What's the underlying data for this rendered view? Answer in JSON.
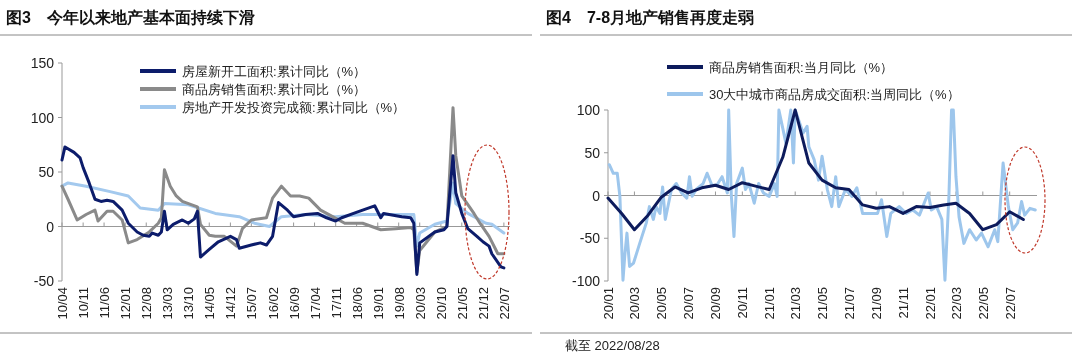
{
  "chart_data": [
    {
      "type": "line",
      "title": "图3　今年以来地产基本面持续下滑",
      "legend": "top",
      "xlim": [
        "2010-04",
        "2022-09"
      ],
      "xticks": [
        {
          "value": "2010-04",
          "label": "10/04"
        },
        {
          "value": "2010-11",
          "label": "10/11"
        },
        {
          "value": "2011-06",
          "label": "11/06"
        },
        {
          "value": "2012-01",
          "label": "12/01"
        },
        {
          "value": "2012-08",
          "label": "12/08"
        },
        {
          "value": "2013-03",
          "label": "13/03"
        },
        {
          "value": "2013-10",
          "label": "13/10"
        },
        {
          "value": "2014-05",
          "label": "14/05"
        },
        {
          "value": "2014-12",
          "label": "14/12"
        },
        {
          "value": "2015-07",
          "label": "15/07"
        },
        {
          "value": "2016-02",
          "label": "16/02"
        },
        {
          "value": "2016-09",
          "label": "16/09"
        },
        {
          "value": "2017-04",
          "label": "17/04"
        },
        {
          "value": "2017-11",
          "label": "17/11"
        },
        {
          "value": "2018-06",
          "label": "18/06"
        },
        {
          "value": "2019-01",
          "label": "19/01"
        },
        {
          "value": "2019-08",
          "label": "19/08"
        },
        {
          "value": "2020-03",
          "label": "20/03"
        },
        {
          "value": "2020-10",
          "label": "20/10"
        },
        {
          "value": "2021-05",
          "label": "21/05"
        },
        {
          "value": "2021-12",
          "label": "21/12"
        },
        {
          "value": "2022-07",
          "label": "22/07"
        }
      ],
      "ylim": [
        -50,
        150
      ],
      "yticks": [
        -50,
        0,
        50,
        100,
        150
      ],
      "series": [
        {
          "name": "房屋新开工面积:累计同比（%）",
          "color": "#0c1c6b",
          "x": [
            "2010-04",
            "2010-05",
            "2010-08",
            "2010-10",
            "2010-11",
            "2011-01",
            "2011-03",
            "2011-05",
            "2011-07",
            "2011-09",
            "2011-12",
            "2012-02",
            "2012-05",
            "2012-07",
            "2012-09",
            "2012-10",
            "2012-12",
            "2013-01",
            "2013-02",
            "2013-03",
            "2013-05",
            "2013-08",
            "2013-10",
            "2013-12",
            "2014-01",
            "2014-02",
            "2014-05",
            "2014-08",
            "2014-12",
            "2015-02",
            "2015-03",
            "2015-07",
            "2015-10",
            "2015-12",
            "2016-02",
            "2016-04",
            "2016-07",
            "2016-09",
            "2017-01",
            "2017-05",
            "2017-08",
            "2017-11",
            "2018-01",
            "2018-05",
            "2018-08",
            "2018-12",
            "2019-02",
            "2019-03",
            "2019-09",
            "2019-12",
            "2020-01",
            "2020-02",
            "2020-03",
            "2020-08",
            "2020-11",
            "2020-12",
            "2021-02",
            "2021-03",
            "2021-05",
            "2021-07",
            "2021-10",
            "2021-12",
            "2022-02",
            "2022-03",
            "2022-06",
            "2022-07"
          ],
          "values": [
            61,
            73,
            68,
            63,
            54,
            40,
            25,
            23,
            24,
            23,
            15,
            3,
            -5,
            -8,
            -9,
            -6,
            -8,
            -5,
            14,
            -3,
            2,
            6,
            3,
            7,
            14,
            -28,
            -21,
            -14,
            -9,
            -12,
            -20,
            -17,
            -15,
            -17,
            -9,
            22,
            15,
            9,
            11,
            12,
            8,
            5,
            8,
            12,
            15,
            19,
            8,
            12,
            9,
            8,
            3,
            -44,
            -15,
            -5,
            -3,
            0,
            65,
            31,
            12,
            -2,
            -9,
            -14,
            -18,
            -25,
            -37,
            -38
          ]
        },
        {
          "name": "商品房销售面积:累计同比（%）",
          "color": "#8a8a8a",
          "x": [
            "2010-04",
            "2010-06",
            "2010-09",
            "2010-12",
            "2011-03",
            "2011-04",
            "2011-07",
            "2011-09",
            "2011-12",
            "2012-02",
            "2012-05",
            "2012-09",
            "2012-12",
            "2013-01",
            "2013-02",
            "2013-04",
            "2013-06",
            "2013-08",
            "2014-01",
            "2014-02",
            "2014-05",
            "2014-07",
            "2014-10",
            "2015-02",
            "2015-04",
            "2015-07",
            "2015-12",
            "2016-02",
            "2016-05",
            "2016-08",
            "2016-11",
            "2017-02",
            "2017-06",
            "2017-10",
            "2018-02",
            "2018-08",
            "2019-02",
            "2019-07",
            "2019-12",
            "2020-01",
            "2020-02",
            "2020-03",
            "2020-08",
            "2020-12",
            "2021-02",
            "2021-03",
            "2021-05",
            "2021-09",
            "2021-11",
            "2022-02",
            "2022-05",
            "2022-07"
          ],
          "values": [
            37,
            25,
            6,
            11,
            15,
            5,
            14,
            14,
            6,
            -15,
            -12,
            -5,
            3,
            8,
            52,
            37,
            28,
            23,
            18,
            2,
            -8,
            -9,
            -9,
            -18,
            -2,
            6,
            8,
            26,
            37,
            28,
            28,
            26,
            15,
            9,
            3,
            3,
            -3,
            -2,
            -1,
            -3,
            -42,
            -22,
            -5,
            0,
            109,
            65,
            28,
            12,
            3,
            -9,
            -25,
            -25
          ]
        },
        {
          "name": "房地产开发投资完成额:累计同比（%）",
          "color": "#a3c9ee",
          "x": [
            "2010-04",
            "2010-06",
            "2010-12",
            "2011-08",
            "2012-02",
            "2012-06",
            "2012-12",
            "2013-02",
            "2013-10",
            "2014-07",
            "2015-03",
            "2015-08",
            "2016-01",
            "2016-05",
            "2017-01",
            "2017-11",
            "2018-08",
            "2019-07",
            "2020-01",
            "2020-02",
            "2020-03",
            "2020-08",
            "2020-12",
            "2021-02",
            "2021-03",
            "2021-07",
            "2022-01",
            "2022-03",
            "2022-07"
          ],
          "values": [
            37,
            40,
            37,
            32,
            28,
            17,
            15,
            21,
            20,
            12,
            9,
            3,
            0,
            9,
            11,
            9,
            11,
            11,
            11,
            -18,
            -6,
            2,
            5,
            40,
            21,
            12,
            3,
            2,
            -6
          ]
        }
      ]
    },
    {
      "type": "line",
      "title": "图4　7-8月地产销售再度走弱",
      "legend": "top",
      "xlim": [
        "2020-01",
        "2022-09"
      ],
      "xticks": [
        {
          "value": "2020-01",
          "label": "20/01"
        },
        {
          "value": "2020-03",
          "label": "20/03"
        },
        {
          "value": "2020-05",
          "label": "20/05"
        },
        {
          "value": "2020-07",
          "label": "20/07"
        },
        {
          "value": "2020-09",
          "label": "20/09"
        },
        {
          "value": "2020-11",
          "label": "20/11"
        },
        {
          "value": "2021-01",
          "label": "21/01"
        },
        {
          "value": "2021-03",
          "label": "21/03"
        },
        {
          "value": "2021-05",
          "label": "21/05"
        },
        {
          "value": "2021-07",
          "label": "21/07"
        },
        {
          "value": "2021-09",
          "label": "21/09"
        },
        {
          "value": "2021-11",
          "label": "21/11"
        },
        {
          "value": "2022-01",
          "label": "22/01"
        },
        {
          "value": "2022-03",
          "label": "22/03"
        },
        {
          "value": "2022-05",
          "label": "22/05"
        },
        {
          "value": "2022-07",
          "label": "22/07"
        }
      ],
      "ylim": [
        -100,
        100
      ],
      "yticks": [
        -100,
        -50,
        0,
        50,
        100
      ],
      "annotations": [
        "截至 2022/08/28"
      ],
      "series": [
        {
          "name": "商品房销售面积:当月同比（%）",
          "color": "#0d1b5c",
          "x": [
            "2020-01",
            "2020-02",
            "2020-03",
            "2020-04",
            "2020-05",
            "2020-06",
            "2020-07",
            "2020-08",
            "2020-09",
            "2020-10",
            "2020-11",
            "2020-12",
            "2021-01",
            "2021-02",
            "2021-03",
            "2021-04",
            "2021-05",
            "2021-06",
            "2021-07",
            "2021-08",
            "2021-09",
            "2021-10",
            "2021-11",
            "2021-12",
            "2022-01",
            "2022-02",
            "2022-03",
            "2022-04",
            "2022-05",
            "2022-06",
            "2022-07",
            "2022-08"
          ],
          "values": [
            -3,
            -21,
            -40,
            -23,
            -2,
            10,
            3,
            9,
            12,
            7,
            15,
            11,
            7,
            45,
            100,
            38,
            18,
            9,
            7,
            -11,
            -15,
            -13,
            -21,
            -13,
            -14,
            -11,
            -9,
            -21,
            -40,
            -34,
            -19,
            -28
          ]
        },
        {
          "name": "30大中城市商品房成交面积:当周同比（%）",
          "color": "#9dc6ec",
          "x": [
            "2020-01-04",
            "2020-01-13",
            "2020-01-22",
            "2020-01-28",
            "2020-02-04",
            "2020-02-08",
            "2020-02-13",
            "2020-02-19",
            "2020-02-28",
            "2020-03-13",
            "2020-03-28",
            "2020-04-04",
            "2020-04-13",
            "2020-04-19",
            "2020-04-28",
            "2020-05-04",
            "2020-05-10",
            "2020-05-24",
            "2020-06-04",
            "2020-06-16",
            "2020-06-28",
            "2020-07-04",
            "2020-07-10",
            "2020-07-19",
            "2020-08-04",
            "2020-08-13",
            "2020-08-24",
            "2020-09-04",
            "2020-09-16",
            "2020-09-28",
            "2020-10-01",
            "2020-10-07",
            "2020-10-13",
            "2020-10-19",
            "2020-11-01",
            "2020-11-08",
            "2020-11-16",
            "2020-11-28",
            "2020-12-08",
            "2020-12-19",
            "2021-01-01",
            "2021-01-13",
            "2021-01-19",
            "2021-01-23",
            "2021-02-08",
            "2021-02-19",
            "2021-02-25",
            "2021-03-01",
            "2021-03-19",
            "2021-03-28",
            "2021-04-01",
            "2021-04-13",
            "2021-04-23",
            "2021-05-01",
            "2021-05-13",
            "2021-05-23",
            "2021-06-01",
            "2021-06-08",
            "2021-06-23",
            "2021-07-08",
            "2021-07-19",
            "2021-08-01",
            "2021-08-19",
            "2021-09-04",
            "2021-09-13",
            "2021-09-25",
            "2021-10-04",
            "2021-10-23",
            "2021-11-08",
            "2021-11-23",
            "2021-12-08",
            "2021-12-28",
            "2022-01-04",
            "2022-01-16",
            "2022-01-28",
            "2022-02-04",
            "2022-02-13",
            "2022-02-19",
            "2022-02-23",
            "2022-03-01",
            "2022-03-08",
            "2022-03-19",
            "2022-04-01",
            "2022-04-16",
            "2022-04-28",
            "2022-05-13",
            "2022-05-28",
            "2022-06-04",
            "2022-06-16",
            "2022-06-28",
            "2022-07-08",
            "2022-07-19",
            "2022-07-28",
            "2022-08-04",
            "2022-08-16",
            "2022-08-28"
          ],
          "values": [
            36,
            26,
            26,
            -1,
            -99,
            -71,
            -44,
            -83,
            -79,
            -56,
            -32,
            -13,
            -28,
            -13,
            -21,
            10,
            -28,
            7,
            14,
            3,
            -3,
            22,
            -1,
            7,
            14,
            26,
            12,
            12,
            22,
            3,
            100,
            0,
            -48,
            14,
            32,
            7,
            14,
            -9,
            14,
            3,
            -1,
            14,
            -1,
            100,
            61,
            100,
            38,
            100,
            73,
            81,
            57,
            42,
            18,
            46,
            7,
            -13,
            22,
            -13,
            7,
            -1,
            9,
            -21,
            -21,
            -21,
            -5,
            -48,
            -21,
            -13,
            -21,
            -17,
            -23,
            3,
            -17,
            -13,
            -28,
            -99,
            -1,
            100,
            100,
            22,
            -25,
            -56,
            -40,
            -52,
            -44,
            -60,
            -40,
            -54,
            38,
            -13,
            -40,
            -32,
            -7,
            -23,
            -15,
            -17
          ]
        }
      ]
    }
  ]
}
